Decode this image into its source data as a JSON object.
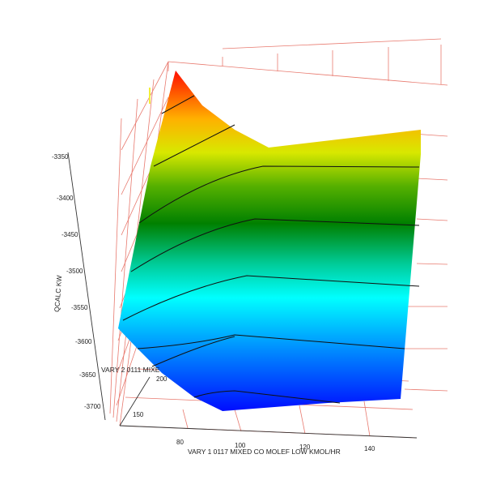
{
  "chart_data": {
    "type": "surface-3d",
    "title": "",
    "zlabel": "QCALC KW",
    "xlabel": "VARY 1 0117 MIXED CO MOLEF LOW KMOL/HR",
    "ylabel": "VARY 2 0111 MIXE",
    "z_ticks": [
      "-3350",
      "-3400",
      "-3450",
      "-3500",
      "-3550",
      "-3600",
      "-3650",
      "-3700"
    ],
    "x_ticks": [
      "80",
      "100",
      "120",
      "140"
    ],
    "y_ticks": [
      "150",
      "200"
    ],
    "zlim": [
      -3720,
      -3320
    ],
    "contour_levels": [
      -3700,
      -3650,
      -3600,
      -3550,
      -3500,
      -3450,
      -3400,
      -3350
    ],
    "colormap": [
      "#0000ff",
      "#00ffff",
      "#008000",
      "#ffff00",
      "#ff0000"
    ],
    "grid_color": "#e87a6f"
  }
}
